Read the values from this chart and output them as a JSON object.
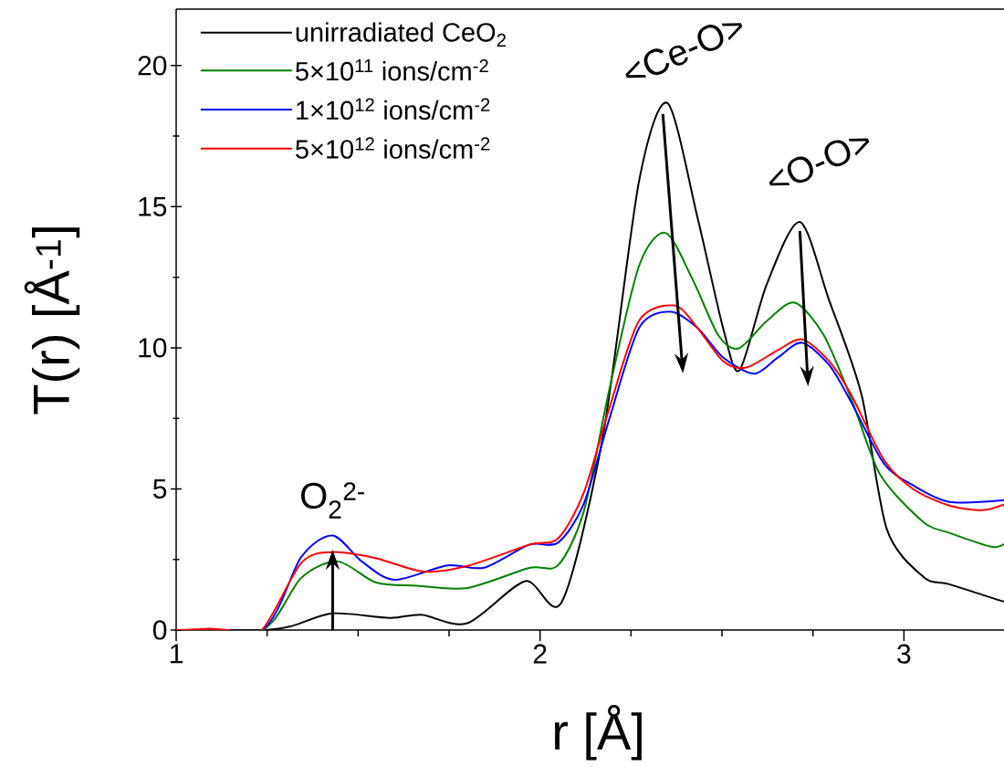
{
  "chart_data": {
    "type": "line",
    "xlabel": "r [Å]",
    "ylabel": "T(r) [Å$^{-1}$]",
    "xlim": [
      1,
      3.275
    ],
    "ylim": [
      0,
      22
    ],
    "xticks": [
      1,
      2,
      3
    ],
    "yticks": [
      0,
      5,
      10,
      15,
      20
    ],
    "legend": "top left",
    "series": [
      {
        "name": "unirradiated CeO$_{2}$",
        "color": "#000000",
        "x": [
          1.0,
          1.24,
          1.32,
          1.43,
          1.587,
          1.674,
          1.8,
          1.959,
          2.06,
          2.172,
          2.272,
          2.35,
          2.433,
          2.503,
          2.548,
          2.623,
          2.714,
          2.794,
          2.883,
          2.953,
          3.054,
          3.125,
          3.266,
          3.275
        ],
        "values": [
          0,
          0,
          0.15,
          0.59,
          0.43,
          0.54,
          0.24,
          1.73,
          1.0,
          6.8,
          15.9,
          18.67,
          14.6,
          10.7,
          9.2,
          12.25,
          14.46,
          11.7,
          8.36,
          3.57,
          1.88,
          1.62,
          1.04,
          1.05
        ]
      },
      {
        "name": "5×10$^{11}$ ions/cm$^{-2}$",
        "color": "#008000",
        "x": [
          1.0,
          1.235,
          1.344,
          1.444,
          1.55,
          1.662,
          1.8,
          1.97,
          2.05,
          2.12,
          2.19,
          2.272,
          2.345,
          2.42,
          2.49,
          2.546,
          2.624,
          2.7,
          2.78,
          2.858,
          2.935,
          3.054,
          3.125,
          3.24,
          3.275
        ],
        "values": [
          0,
          0,
          1.85,
          2.43,
          1.68,
          1.57,
          1.49,
          2.2,
          2.3,
          4.2,
          8.5,
          12.9,
          14.07,
          12.4,
          10.44,
          9.98,
          10.96,
          11.6,
          10.44,
          8.1,
          5.5,
          3.82,
          3.44,
          2.95,
          3.05
        ]
      },
      {
        "name": "1×10$^{12}$ ions/cm$^{-2}$",
        "color": "#0000ff",
        "x": [
          1.0,
          1.235,
          1.344,
          1.43,
          1.51,
          1.6,
          1.745,
          1.846,
          1.97,
          2.05,
          2.12,
          2.19,
          2.272,
          2.357,
          2.433,
          2.503,
          2.588,
          2.654,
          2.719,
          2.794,
          2.854,
          2.945,
          3.026,
          3.125,
          3.275
        ],
        "values": [
          0,
          0,
          2.59,
          3.35,
          2.43,
          1.78,
          2.29,
          2.21,
          3.02,
          3.1,
          4.47,
          7.46,
          10.7,
          11.28,
          10.7,
          9.66,
          9.08,
          9.66,
          10.18,
          9.4,
          8.1,
          5.9,
          5.12,
          4.54,
          4.6
        ]
      },
      {
        "name": "5×10$^{12}$ ions/cm$^{-2}$",
        "color": "#ff0000",
        "x": [
          1.0,
          1.05,
          1.093,
          1.14,
          1.235,
          1.344,
          1.43,
          1.55,
          1.68,
          1.8,
          1.97,
          2.05,
          2.12,
          2.19,
          2.272,
          2.37,
          2.433,
          2.503,
          2.566,
          2.654,
          2.72,
          2.794,
          2.854,
          2.945,
          3.026,
          3.125,
          3.216,
          3.275
        ],
        "values": [
          0,
          0.02,
          0.05,
          0,
          0,
          2.38,
          2.76,
          2.54,
          2.07,
          2.27,
          3.02,
          3.25,
          4.86,
          7.84,
          10.96,
          11.5,
          10.7,
          9.53,
          9.3,
          9.92,
          10.3,
          9.53,
          8.36,
          6.03,
          4.99,
          4.41,
          4.25,
          4.45
        ]
      }
    ],
    "annotations": [
      {
        "text": "<Ce-O>",
        "x": 2.35,
        "y": 18.67
      },
      {
        "text": "<O-O>",
        "x": 2.714,
        "y": 14.46
      },
      {
        "text": "O$_{2}$$^{2-}$",
        "x": 1.43,
        "y": 2.85
      }
    ]
  }
}
